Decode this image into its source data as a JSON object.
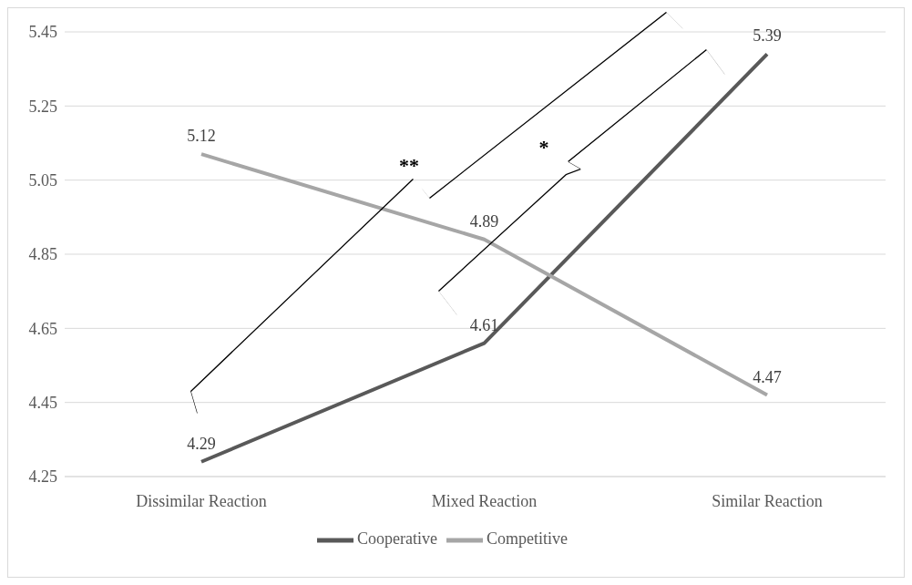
{
  "chart_data": {
    "type": "line",
    "categories": [
      "Dissimilar Reaction",
      "Mixed Reaction",
      "Similar Reaction"
    ],
    "series": [
      {
        "name": "Cooperative",
        "color": "#595959",
        "values": [
          4.29,
          4.61,
          5.39
        ]
      },
      {
        "name": "Competitive",
        "color": "#a6a6a6",
        "values": [
          5.12,
          4.89,
          4.47
        ]
      }
    ],
    "ylim": [
      4.25,
      5.45
    ],
    "yticks": [
      4.25,
      4.45,
      4.65,
      4.85,
      5.05,
      5.25,
      5.45
    ],
    "grid": "y",
    "legend": "bottom",
    "data_labels": true,
    "marker": "none",
    "line_style": "solid",
    "annotations": [
      "**",
      "*"
    ]
  }
}
